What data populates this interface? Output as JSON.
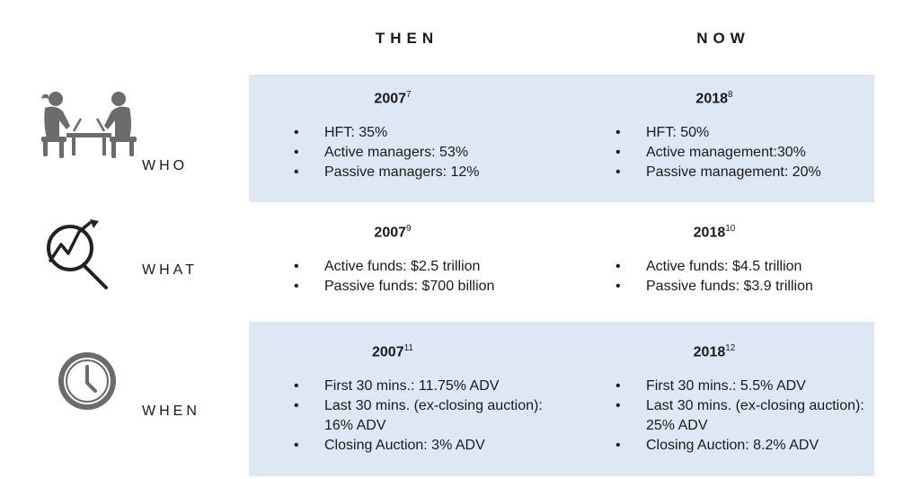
{
  "headers": {
    "then": "THEN",
    "now": "NOW"
  },
  "rows": {
    "who": {
      "label": "WHO",
      "icon": "people-at-laptops-icon",
      "then": {
        "year": "2007",
        "ref": "7",
        "items": [
          "HFT: 35%",
          "Active managers: 53%",
          "Passive managers: 12%"
        ]
      },
      "now": {
        "year": "2018",
        "ref": "8",
        "items": [
          "HFT: 50%",
          "Active management:30%",
          "Passive management: 20%"
        ]
      }
    },
    "what": {
      "label": "WHAT",
      "icon": "magnifier-growth-chart-icon",
      "then": {
        "year": "2007",
        "ref": "9",
        "items": [
          "Active funds: $2.5 trillion",
          "Passive funds: $700 billion"
        ]
      },
      "now": {
        "year": "2018",
        "ref": "10",
        "items": [
          "Active funds: $4.5 trillion",
          "Passive funds: $3.9 trillion"
        ]
      }
    },
    "when": {
      "label": "WHEN",
      "icon": "clock-icon",
      "then": {
        "year": "2007",
        "ref": "11",
        "items": [
          "First 30 mins.: 11.75% ADV",
          "Last 30 mins. (ex-closing auction): 16% ADV",
          "Closing Auction: 3% ADV"
        ]
      },
      "now": {
        "year": "2018",
        "ref": "12",
        "items": [
          "First 30 mins.: 5.5% ADV",
          "Last 30 mins. (ex-closing auction):  25% ADV",
          "Closing Auction: 8.2% ADV"
        ]
      }
    }
  },
  "colors": {
    "band_fill": "#dde8f4",
    "icon_gray": "#6b6b6b",
    "text": "#1a1a1a"
  }
}
